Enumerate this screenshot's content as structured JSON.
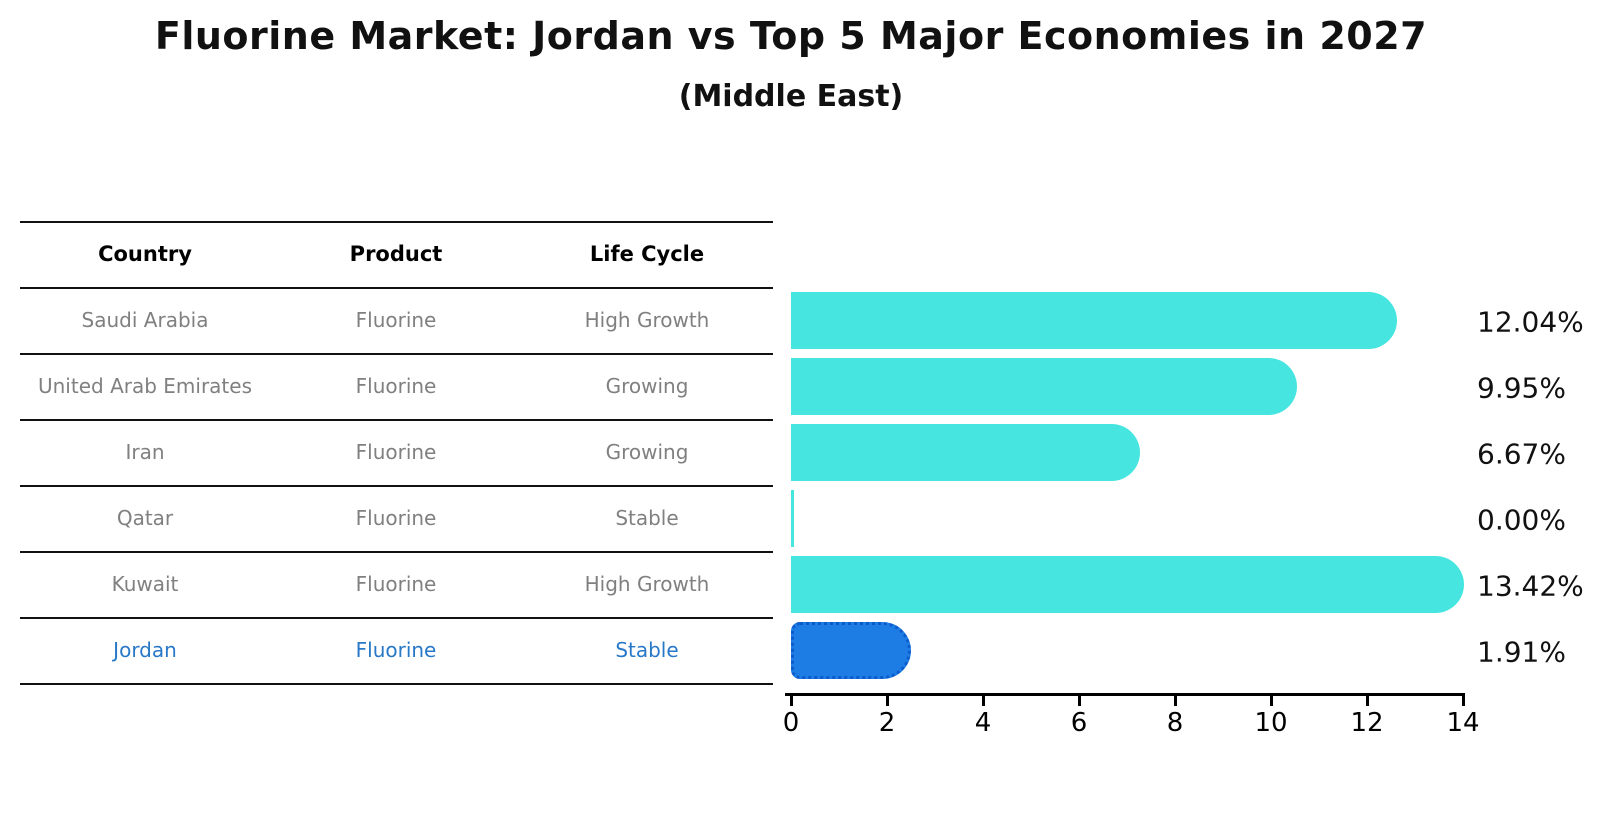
{
  "title": "Fluorine Market: Jordan vs Top 5 Major Economies in 2027",
  "subtitle": "(Middle East)",
  "table": {
    "headers": [
      "Country",
      "Product",
      "Life Cycle"
    ],
    "rows": [
      {
        "country": "Saudi Arabia",
        "product": "Fluorine",
        "life_cycle": "High Growth",
        "highlight": false
      },
      {
        "country": "United Arab Emirates",
        "product": "Fluorine",
        "life_cycle": "Growing",
        "highlight": false
      },
      {
        "country": "Iran",
        "product": "Fluorine",
        "life_cycle": "Growing",
        "highlight": false
      },
      {
        "country": "Qatar",
        "product": "Fluorine",
        "life_cycle": "Stable",
        "highlight": false
      },
      {
        "country": "Kuwait",
        "product": "Fluorine",
        "life_cycle": "High Growth",
        "highlight": false
      },
      {
        "country": "Jordan",
        "product": "Fluorine",
        "life_cycle": "Stable",
        "highlight": true
      }
    ]
  },
  "chart_data": {
    "type": "bar",
    "orientation": "horizontal",
    "title": "Fluorine Market: Jordan vs Top 5 Major Economies in 2027",
    "subtitle": "(Middle East)",
    "categories": [
      "Saudi Arabia",
      "United Arab Emirates",
      "Iran",
      "Qatar",
      "Kuwait",
      "Jordan"
    ],
    "values": [
      12.04,
      9.95,
      6.67,
      0.0,
      13.42,
      1.91
    ],
    "value_labels": [
      "12.04%",
      "9.95%",
      "6.67%",
      "0.00%",
      "13.42%",
      "1.91%"
    ],
    "xlim": [
      0,
      14
    ],
    "xticks": [
      0,
      2,
      4,
      6,
      8,
      10,
      12,
      14
    ],
    "grid": false,
    "legend": "none"
  },
  "colors": {
    "bar_default": "#46E5E0",
    "bar_highlight": "#1E7CE5",
    "bar_highlight_border": "#0C5BCD",
    "row_text": "#808080",
    "row_text_highlight": "#2878C8",
    "header_text": "#000000",
    "axis": "#000000",
    "value_label": "#111111",
    "background": "#FFFFFF"
  }
}
